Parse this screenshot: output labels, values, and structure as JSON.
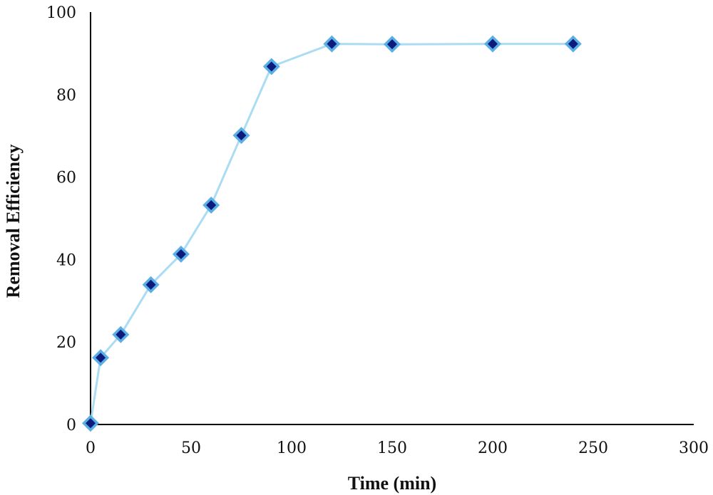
{
  "chart_data": {
    "type": "scatter",
    "title": "",
    "xlabel": "Time (min)",
    "ylabel": "Removal Efficiency",
    "xlim": [
      0,
      300
    ],
    "ylim": [
      0,
      100
    ],
    "x_ticks": [
      "0",
      "50",
      "100",
      "150",
      "200",
      "250",
      "300"
    ],
    "y_ticks": [
      "0",
      "20",
      "40",
      "60",
      "80",
      "100"
    ],
    "grid": false,
    "legend": "none",
    "series": [
      {
        "x": [
          0,
          5,
          15,
          30,
          45,
          60,
          75,
          90,
          120,
          150,
          200,
          240
        ],
        "y": [
          0.3,
          16.2,
          21.8,
          33.9,
          41.3,
          53.2,
          70.1,
          86.8,
          92.3,
          92.2,
          92.3,
          92.3
        ],
        "line_color": "#aadcf3",
        "marker": "diamond",
        "marker_fill": "#0c1b7c",
        "marker_edge": "#5aaee6"
      }
    ]
  }
}
